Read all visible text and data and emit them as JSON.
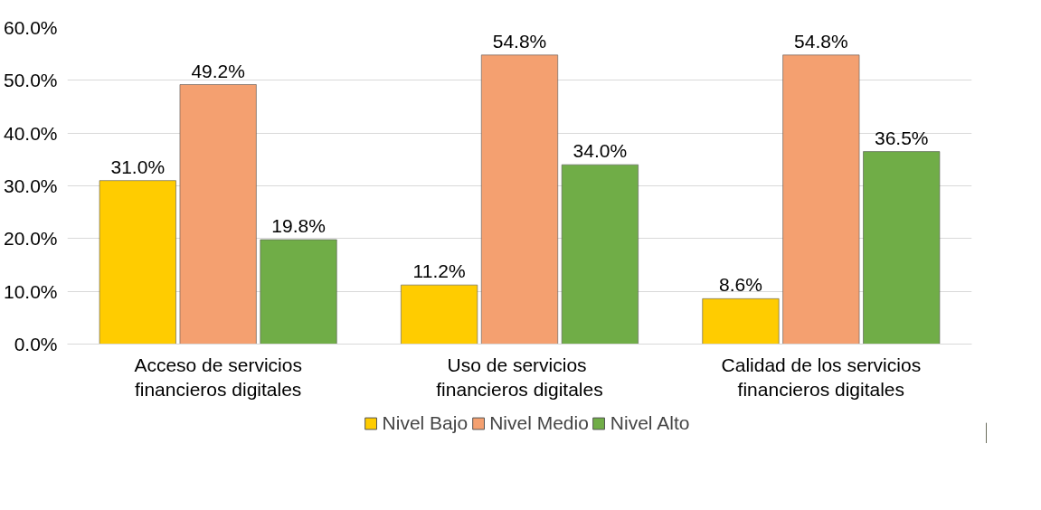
{
  "chart_data": {
    "type": "bar",
    "categories": [
      "Acceso de servicios\nfinancieros digitales",
      "Uso de  servicios\nfinancieros digitales",
      "Calidad de los servicios\nfinancieros digitales"
    ],
    "series": [
      {
        "name": "Nivel Bajo",
        "color": "#ffcc00",
        "values": [
          31.0,
          11.2,
          8.6
        ],
        "value_labels": [
          "31.0%",
          "11.2%",
          "8.6%"
        ]
      },
      {
        "name": "Nivel Medio",
        "color": "#f4a070",
        "values": [
          49.2,
          54.8,
          54.8
        ],
        "value_labels": [
          "49.2%",
          "54.8%",
          "54.8%"
        ]
      },
      {
        "name": "Nivel Alto",
        "color": "#70ad47",
        "values": [
          19.8,
          34.0,
          36.5
        ],
        "value_labels": [
          "19.8%",
          "34.0%",
          "36.5%"
        ]
      }
    ],
    "ylim": [
      0,
      60
    ],
    "yticks": [
      {
        "value": 0,
        "label": "0.0%"
      },
      {
        "value": 10,
        "label": "10.0%"
      },
      {
        "value": 20,
        "label": "20.0%"
      },
      {
        "value": 30,
        "label": "30.0%"
      },
      {
        "value": 40,
        "label": "40.0%"
      },
      {
        "value": 50,
        "label": "50.0%"
      },
      {
        "value": 60,
        "label": "60.0%"
      }
    ],
    "grid": "y",
    "legend": "bottom"
  }
}
